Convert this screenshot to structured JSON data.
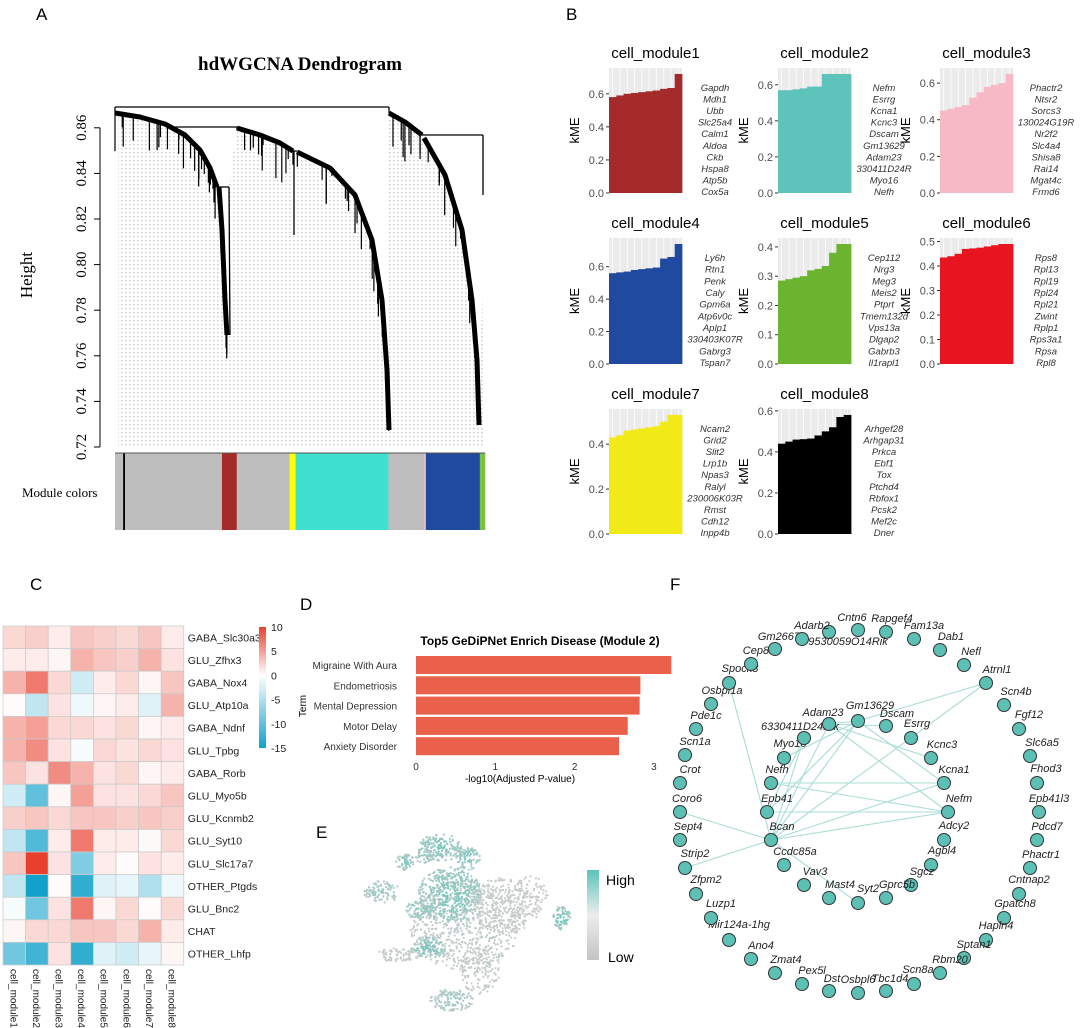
{
  "panel_labels": {
    "a": "A",
    "b": "B",
    "c": "C",
    "d": "D",
    "e": "E",
    "f": "F"
  },
  "chart_data": [
    {
      "type": "dendrogram",
      "title": "hdWGCNA Dendrogram",
      "ylabel": "Height",
      "ylim": [
        0.72,
        0.87
      ],
      "yticks": [
        "0.72",
        "0.74",
        "0.76",
        "0.78",
        "0.80",
        "0.82",
        "0.84",
        "0.86"
      ],
      "color_bar_label": "Module colors",
      "module_color_segments": [
        {
          "color": "#bebebe",
          "fraction": 0.022
        },
        {
          "color": "#000000",
          "fraction": 0.005
        },
        {
          "color": "#bebebe",
          "fraction": 0.262
        },
        {
          "color": "#a52a2a",
          "fraction": 0.04
        },
        {
          "color": "#bebebe",
          "fraction": 0.143
        },
        {
          "color": "#ffff00",
          "fraction": 0.016
        },
        {
          "color": "#40e0d0",
          "fraction": 0.251
        },
        {
          "color": "#bebebe",
          "fraction": 0.097
        },
        {
          "color": "#ffc0cb",
          "fraction": 0.004
        },
        {
          "color": "#1f4aa0",
          "fraction": 0.146
        },
        {
          "color": "#7bc043",
          "fraction": 0.014
        }
      ]
    },
    {
      "type": "bar",
      "title": "cell_module1",
      "ylabel": "kME",
      "color": "#a52a2a",
      "yticks": [
        "0.0",
        "0.2",
        "0.4",
        "0.6"
      ],
      "genes": [
        "Gapdh",
        "Mdh1",
        "Ubb",
        "Slc25a4",
        "Calm1",
        "Aldoa",
        "Ckb",
        "Hspa8",
        "Atp5b",
        "Cox5a"
      ],
      "values": [
        0.58,
        0.59,
        0.6,
        0.605,
        0.61,
        0.615,
        0.62,
        0.63,
        0.635,
        0.72
      ]
    },
    {
      "type": "bar",
      "title": "cell_module2",
      "ylabel": "kME",
      "color": "#5ec4bb",
      "yticks": [
        "0.0",
        "0.2",
        "0.4",
        "0.6"
      ],
      "genes": [
        "Nefm",
        "Esrrg",
        "Kcna1",
        "Kcnc3",
        "Dscam",
        "Gm13629",
        "Adam23",
        "330411D24R",
        "Myo16",
        "Nefh"
      ],
      "values": [
        0.57,
        0.57,
        0.575,
        0.58,
        0.59,
        0.59,
        0.66,
        0.66,
        0.66,
        0.66
      ]
    },
    {
      "type": "bar",
      "title": "cell_module3",
      "ylabel": "kME",
      "color": "#f7b9c6",
      "yticks": [
        "0.0",
        "0.2",
        "0.4",
        "0.6"
      ],
      "genes": [
        "Phactr2",
        "Ntsr2",
        "Sorcs3",
        "130024G19R",
        "Nr2f2",
        "Slc4a4",
        "Shisa8",
        "Rai14",
        "Mgat4c",
        "Frmd6"
      ],
      "values": [
        0.45,
        0.46,
        0.47,
        0.48,
        0.52,
        0.55,
        0.58,
        0.59,
        0.6,
        0.65
      ]
    },
    {
      "type": "bar",
      "title": "cell_module4",
      "ylabel": "kME",
      "color": "#1f4aa0",
      "yticks": [
        "0.0",
        "0.2",
        "0.4",
        "0.6"
      ],
      "genes": [
        "Ly6h",
        "Rtn1",
        "Penk",
        "Caly",
        "Gpm6a",
        "Atp6v0c",
        "Aplp1",
        "330403K07R",
        "Gabrg3",
        "Tspan7"
      ],
      "values": [
        0.56,
        0.565,
        0.57,
        0.58,
        0.585,
        0.59,
        0.595,
        0.65,
        0.66,
        0.74
      ]
    },
    {
      "type": "bar",
      "title": "cell_module5",
      "ylabel": "kME",
      "color": "#6ab42f",
      "yticks": [
        "0.0",
        "0.1",
        "0.2",
        "0.3",
        "0.4"
      ],
      "genes": [
        "Cep112",
        "Nrg3",
        "Meg3",
        "Meis2",
        "Ptprt",
        "Tmem132d",
        "Vps13a",
        "Dlgap2",
        "Gabrb3",
        "Il1rapl1"
      ],
      "values": [
        0.285,
        0.29,
        0.295,
        0.3,
        0.32,
        0.325,
        0.335,
        0.38,
        0.41,
        0.41
      ]
    },
    {
      "type": "bar",
      "title": "cell_module6",
      "ylabel": "kME",
      "color": "#e8141f",
      "yticks": [
        "0.0",
        "0.1",
        "0.2",
        "0.3",
        "0.4",
        "0.5"
      ],
      "genes": [
        "Rps8",
        "Rpl13",
        "Rpl19",
        "Rpl24",
        "Rpl21",
        "Zwint",
        "Rplp1",
        "Rps3a1",
        "Rpsa",
        "Rpl8"
      ],
      "values": [
        0.435,
        0.44,
        0.45,
        0.47,
        0.472,
        0.475,
        0.48,
        0.485,
        0.49,
        0.49
      ]
    },
    {
      "type": "bar",
      "title": "cell_module7",
      "ylabel": "kME",
      "color": "#f2ea16",
      "yticks": [
        "0.0",
        "0.2",
        "0.4"
      ],
      "genes": [
        "Ncam2",
        "Grid2",
        "Slit2",
        "Lrp1b",
        "Npas3",
        "Ralyl",
        "230006K03R",
        "Rmst",
        "Cdh12",
        "Inpp4b"
      ],
      "values": [
        0.43,
        0.44,
        0.46,
        0.465,
        0.47,
        0.475,
        0.48,
        0.5,
        0.53,
        0.53
      ]
    },
    {
      "type": "bar",
      "title": "cell_module8",
      "ylabel": "kME",
      "color": "#000000",
      "yticks": [
        "0.0",
        "0.2",
        "0.4",
        "0.6"
      ],
      "genes": [
        "Arhgef28",
        "Arhgap31",
        "Prkca",
        "Ebf1",
        "Tox",
        "Ptchd4",
        "Rbfox1",
        "Pcsk2",
        "Mef2c",
        "Dner"
      ],
      "values": [
        0.44,
        0.45,
        0.46,
        0.462,
        0.465,
        0.48,
        0.5,
        0.52,
        0.57,
        0.58
      ]
    },
    {
      "type": "heatmap",
      "columns": [
        "cell_module1",
        "cell_module2",
        "cell_module3",
        "cell_module4",
        "cell_module5",
        "cell_module6",
        "cell_module7",
        "cell_module8"
      ],
      "rows": [
        "GABA_Slc30a3",
        "GLU_Zfhx3",
        "GABA_Nox4",
        "GLU_Atp10a",
        "GABA_Ndnf",
        "GLU_Tpbg",
        "GABA_Rorb",
        "GLU_Myo5b",
        "GLU_Kcnmb2",
        "GLU_Syt10",
        "GLU_Slc17a7",
        "OTHER_Ptgds",
        "GLU_Bnc2",
        "CHAT",
        "OTHER_Lhfp"
      ],
      "values": [
        [
          2,
          2.5,
          1,
          3,
          2.5,
          2,
          3,
          1
        ],
        [
          1,
          1,
          0.5,
          4,
          3,
          2.5,
          4,
          1.5
        ],
        [
          4,
          7,
          2,
          -3,
          1,
          2,
          0.5,
          3
        ],
        [
          0.2,
          -4,
          1.5,
          -1,
          0.5,
          1,
          -2,
          4
        ],
        [
          4,
          5,
          2,
          2,
          1.5,
          2,
          0.5,
          1
        ],
        [
          4,
          6,
          1.5,
          -0.5,
          2,
          1.5,
          2,
          1.5
        ],
        [
          3,
          1.5,
          6,
          4,
          1.5,
          2,
          0.5,
          1
        ],
        [
          -3,
          -10,
          0.5,
          5,
          1.5,
          1.5,
          2,
          3
        ],
        [
          2.5,
          3,
          2,
          3,
          3,
          2.5,
          3,
          2.5
        ],
        [
          -4,
          -11,
          1,
          7,
          1,
          1,
          0.3,
          2
        ],
        [
          3,
          11,
          1.5,
          -8,
          1,
          0.2,
          1.5,
          1
        ],
        [
          -4,
          -15,
          0.2,
          -13,
          -2,
          -1.5,
          -5,
          -1
        ],
        [
          -0.5,
          -9,
          1.5,
          7,
          0.5,
          2,
          0.2,
          2
        ],
        [
          0.5,
          2,
          2,
          3,
          3,
          2,
          4,
          1
        ],
        [
          -9,
          -12,
          1.5,
          -13,
          -2,
          -3,
          -1.5,
          0.5
        ]
      ],
      "colorbar_ticks": [
        "10",
        "5",
        "0",
        "-5",
        "-10",
        "-15"
      ],
      "colorbar_range": [
        -15,
        10
      ],
      "colors": {
        "high": "#e8402e",
        "mid": "#ffffff",
        "low": "#12a1ca"
      }
    },
    {
      "type": "bar",
      "orientation": "horizontal",
      "title": "Top5 GeDiPNet Enrich Disease (Module 2)",
      "categories": [
        "Migraine With Aura",
        "Endometriosis",
        "Mental Depression",
        "Motor Delay",
        "Anxiety Disorder"
      ],
      "values": [
        3.22,
        2.83,
        2.82,
        2.67,
        2.56
      ],
      "xlabel": "-log10(Adjusted P-value)",
      "ylabel": "Term",
      "xticks": [
        "0",
        "1",
        "2",
        "3"
      ],
      "xlim": [
        0,
        3.25
      ],
      "color": "#e9604b"
    },
    {
      "type": "scatter",
      "subtype": "umap-feature",
      "legend": {
        "high": "High",
        "low": "Low"
      },
      "colors": {
        "high": "#5cc4b9",
        "low": "#c8c8c8"
      }
    },
    {
      "type": "network",
      "node_color": "#5cc0b5",
      "edge_color": "#a8ddd6",
      "outer_nodes": [
        "Adarb2",
        "Cntn6",
        "Rapgef4",
        "Fam13a",
        "Dab1",
        "Nefl",
        "Atrnl1",
        "Scn4b",
        "Fgf12",
        "Slc6a5",
        "Fhod3",
        "Epb41l3",
        "Pdcd7",
        "Phactr1",
        "Cntnap2",
        "Gpatch8",
        "Hapln4",
        "Sptan1",
        "Rbm20",
        "Scn8a",
        "Tbc1d4",
        "Osbpl6",
        "Dst",
        "Pex5l",
        "Zmat4",
        "Ano4",
        "Mir124a-1hg",
        "Luzp1",
        "Zfpm2",
        "Strip2",
        "Sept4",
        "Coro6",
        "Crot",
        "Scn1a",
        "Pde1c",
        "Osbpl1a",
        "Spock3",
        "Cep83",
        "Gm26673",
        "9530059O14Rik"
      ],
      "inner_nodes": [
        "Gm13629",
        "Dscam",
        "Esrrg",
        "Kcnc3",
        "Kcna1",
        "Nefm",
        "Adcy2",
        "Agbl4",
        "Sgcz",
        "Gprc5b",
        "Syt2",
        "Mast4",
        "Vav3",
        "Ccdc85a",
        "Bcan",
        "Epb41",
        "Nefh",
        "Myo16",
        "6330411D24Rik",
        "Adam23"
      ],
      "edges": [
        [
          "Spock3",
          "Bcan"
        ],
        [
          "Atrnl1",
          "Gm13629"
        ],
        [
          "Atrnl1",
          "Bcan"
        ],
        [
          "Adam23",
          "Kcnc3"
        ],
        [
          "Adam23",
          "Nefm"
        ],
        [
          "Gm13629",
          "Kcna1"
        ],
        [
          "Gm13629",
          "Epb41"
        ],
        [
          "Gm13629",
          "Bcan"
        ],
        [
          "Adam23",
          "Bcan"
        ],
        [
          "6330411D24Rik",
          "Bcan"
        ],
        [
          "6330411D24Rik",
          "Epb41"
        ],
        [
          "Adam23",
          "Gm13629"
        ],
        [
          "Adam23",
          "Dscam"
        ],
        [
          "Nefh",
          "Nefm"
        ],
        [
          "Nefh",
          "Kcna1"
        ],
        [
          "Epb41",
          "Nefm"
        ],
        [
          "Bcan",
          "Nefm"
        ],
        [
          "Bcan",
          "Kcna1"
        ],
        [
          "Coro6",
          "Bcan"
        ],
        [
          "Strip2",
          "Bcan"
        ],
        [
          "Bcan",
          "Syt2"
        ],
        [
          "Myo16",
          "Gm13629"
        ]
      ]
    }
  ]
}
